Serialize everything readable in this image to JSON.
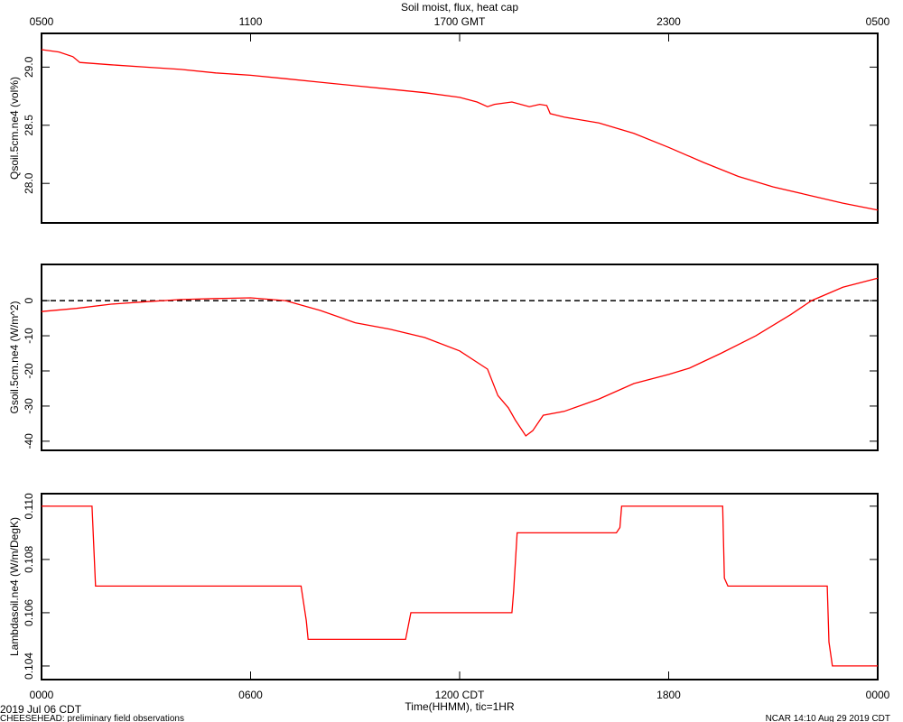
{
  "chart_data": [
    {
      "type": "line",
      "title": "Soil moist, flux, heat cap",
      "color": "#ff0000",
      "ylabel": "Qsoil.5cm.ne4 (vol%)",
      "xlim": [
        0,
        24
      ],
      "x2ticks": [
        {
          "value": 0,
          "label": "0500"
        },
        {
          "value": 6,
          "label": "1100"
        },
        {
          "value": 12,
          "label": "1700 GMT"
        },
        {
          "value": 18,
          "label": "2300"
        },
        {
          "value": 24,
          "label": "0500"
        }
      ],
      "ylim": [
        27.66,
        29.29
      ],
      "yticks": [
        {
          "value": 28.0,
          "label": "28.0"
        },
        {
          "value": 28.5,
          "label": "28.5"
        },
        {
          "value": 29.0,
          "label": "29.0"
        }
      ],
      "x": [
        0,
        0.5,
        0.9,
        1.1,
        2,
        3,
        4,
        5,
        6,
        7,
        8,
        9,
        10,
        11,
        12,
        12.5,
        12.8,
        13,
        13.5,
        14,
        14.3,
        14.5,
        14.6,
        15,
        16,
        17,
        18,
        19,
        20,
        21,
        22,
        23,
        24
      ],
      "values": [
        29.15,
        29.13,
        29.09,
        29.04,
        29.02,
        29.0,
        28.98,
        28.95,
        28.93,
        28.9,
        28.87,
        28.84,
        28.81,
        28.78,
        28.74,
        28.7,
        28.66,
        28.68,
        28.7,
        28.66,
        28.68,
        28.67,
        28.6,
        28.57,
        28.52,
        28.43,
        28.31,
        28.18,
        28.06,
        27.97,
        27.9,
        27.83,
        27.77
      ]
    },
    {
      "type": "line",
      "color": "#ff0000",
      "ylabel": "Gsoil.5cm.ne4 (W/m^2)",
      "xlim": [
        0,
        24
      ],
      "ylim": [
        -42.6,
        10.3
      ],
      "yticks": [
        -40,
        -30,
        -20,
        -10,
        0
      ],
      "hline": 0,
      "x": [
        0,
        1,
        2,
        3,
        4,
        5,
        6,
        7,
        8,
        9,
        10,
        11,
        12,
        12.8,
        13.1,
        13.4,
        13.6,
        13.9,
        14.1,
        14.4,
        15,
        16,
        17,
        18,
        18.6,
        19.5,
        20.5,
        21.5,
        22.1,
        23,
        24
      ],
      "values": [
        -3.1,
        -2.2,
        -1.0,
        -0.3,
        0.3,
        0.6,
        0.8,
        0,
        -2.8,
        -6.3,
        -8.1,
        -10.5,
        -14.3,
        -19.5,
        -27,
        -30.5,
        -34,
        -38.5,
        -37,
        -32.6,
        -31.5,
        -28,
        -23.6,
        -21,
        -19.2,
        -15,
        -10,
        -4,
        0,
        3.8,
        6.4
      ]
    },
    {
      "type": "line",
      "color": "#ff0000",
      "ylabel": "Lambdasoil.ne4 (W/m/DegK)",
      "xlabel": "Time(HHMM), tic=1HR",
      "xlim": [
        0,
        24
      ],
      "xticks": [
        {
          "value": 0,
          "label": "0000"
        },
        {
          "value": 6,
          "label": "0600"
        },
        {
          "value": 12,
          "label": "1200 CDT"
        },
        {
          "value": 18,
          "label": "1800"
        },
        {
          "value": 24,
          "label": "0000"
        }
      ],
      "ylim": [
        0.10349,
        0.11047
      ],
      "yticks": [
        0.104,
        0.106,
        0.108,
        {
          "value": 0.11,
          "label": "0.110"
        }
      ],
      "x": [
        0,
        1.45,
        1.55,
        7.45,
        7.6,
        7.65,
        10.45,
        10.6,
        13.5,
        13.55,
        13.65,
        16.5,
        16.6,
        16.65,
        19.55,
        19.6,
        19.7,
        22.55,
        22.6,
        22.7,
        24
      ],
      "values": [
        0.11,
        0.11,
        0.107,
        0.107,
        0.1057,
        0.105,
        0.105,
        0.106,
        0.106,
        0.1068,
        0.109,
        0.109,
        0.1092,
        0.11,
        0.11,
        0.1073,
        0.107,
        0.107,
        0.1049,
        0.104,
        0.104
      ]
    }
  ],
  "date_label": "2019 Jul 06 CDT",
  "footer_left": "CHEESEHEAD: preliminary field observations",
  "footer_right": "NCAR 14:10 Aug 29 2019 CDT"
}
